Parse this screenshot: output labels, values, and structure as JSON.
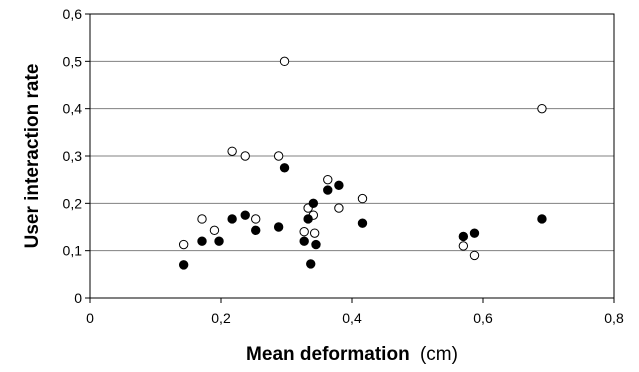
{
  "chart_data": {
    "type": "scatter",
    "xlabel": "Mean deformation",
    "xlabel_unit": "(cm)",
    "ylabel": "User interaction rate",
    "xlim": [
      0,
      0.8
    ],
    "ylim": [
      0,
      0.6
    ],
    "x_ticks": [
      0,
      0.2,
      0.4,
      0.6,
      0.8
    ],
    "y_ticks": [
      0,
      0.1,
      0.2,
      0.3,
      0.4,
      0.5,
      0.6
    ],
    "x_tick_labels": [
      "0",
      "0,2",
      "0,4",
      "0,6",
      "0,8"
    ],
    "y_tick_labels": [
      "0",
      "0,1",
      "0,2",
      "0,3",
      "0,4",
      "0,5",
      "0,6"
    ],
    "grid": "horizontal",
    "legend": "none",
    "series": [
      {
        "marker": "open-circle",
        "color": "#000000",
        "points": [
          {
            "x": 0.143,
            "y": 0.113
          },
          {
            "x": 0.171,
            "y": 0.167
          },
          {
            "x": 0.19,
            "y": 0.143
          },
          {
            "x": 0.217,
            "y": 0.31
          },
          {
            "x": 0.237,
            "y": 0.3
          },
          {
            "x": 0.253,
            "y": 0.167
          },
          {
            "x": 0.288,
            "y": 0.3
          },
          {
            "x": 0.297,
            "y": 0.5
          },
          {
            "x": 0.327,
            "y": 0.14
          },
          {
            "x": 0.333,
            "y": 0.19
          },
          {
            "x": 0.341,
            "y": 0.175
          },
          {
            "x": 0.343,
            "y": 0.137
          },
          {
            "x": 0.363,
            "y": 0.25
          },
          {
            "x": 0.38,
            "y": 0.19
          },
          {
            "x": 0.416,
            "y": 0.21
          },
          {
            "x": 0.57,
            "y": 0.11
          },
          {
            "x": 0.587,
            "y": 0.09
          },
          {
            "x": 0.69,
            "y": 0.4
          }
        ]
      },
      {
        "marker": "filled-circle",
        "color": "#000000",
        "points": [
          {
            "x": 0.143,
            "y": 0.07
          },
          {
            "x": 0.171,
            "y": 0.12
          },
          {
            "x": 0.197,
            "y": 0.12
          },
          {
            "x": 0.217,
            "y": 0.167
          },
          {
            "x": 0.237,
            "y": 0.175
          },
          {
            "x": 0.253,
            "y": 0.143
          },
          {
            "x": 0.288,
            "y": 0.15
          },
          {
            "x": 0.297,
            "y": 0.275
          },
          {
            "x": 0.327,
            "y": 0.12
          },
          {
            "x": 0.333,
            "y": 0.167
          },
          {
            "x": 0.337,
            "y": 0.072
          },
          {
            "x": 0.341,
            "y": 0.2
          },
          {
            "x": 0.345,
            "y": 0.113
          },
          {
            "x": 0.363,
            "y": 0.228
          },
          {
            "x": 0.38,
            "y": 0.238
          },
          {
            "x": 0.416,
            "y": 0.158
          },
          {
            "x": 0.57,
            "y": 0.13
          },
          {
            "x": 0.587,
            "y": 0.137
          },
          {
            "x": 0.69,
            "y": 0.167
          }
        ]
      }
    ]
  }
}
